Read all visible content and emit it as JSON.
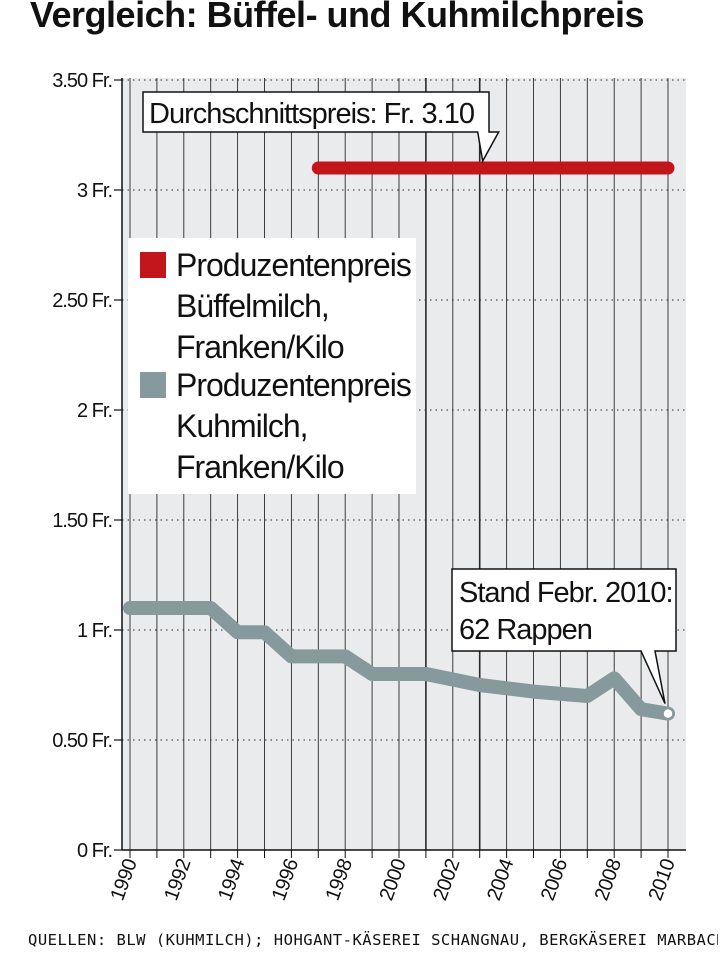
{
  "title": "Vergleich: Büffel- und Kuhmilchpreis",
  "source": "QUELLEN: BLW (KUHMILCH); HOHGANT-KÄSEREI SCHANGNAU, BERGKÄSEREI MARBACH SCHANGNAU (BÜFFELMILCH); INFOGRAFIK: BEOBACHTER/DB",
  "colors": {
    "buffalo": "#c3161c",
    "cow": "#86999d",
    "panel": "#e9ebec",
    "grid": "#2a2a2a"
  },
  "chart_data": {
    "type": "line",
    "title": "Vergleich: Büffel- und Kuhmilchpreis",
    "xlabel": "",
    "ylabel": "",
    "xlim": [
      1990,
      2010
    ],
    "ylim": [
      0,
      3.5
    ],
    "x_ticks": [
      "1990",
      "1992",
      "1994",
      "1996",
      "1998",
      "2000",
      "2002",
      "2004",
      "2006",
      "2008",
      "2010"
    ],
    "y_ticks": [
      {
        "value": 0,
        "label": "0 Fr."
      },
      {
        "value": 0.5,
        "label": "0.50 Fr."
      },
      {
        "value": 1,
        "label": "1 Fr."
      },
      {
        "value": 1.5,
        "label": "1.50 Fr."
      },
      {
        "value": 2,
        "label": "2 Fr."
      },
      {
        "value": 2.5,
        "label": "2.50 Fr."
      },
      {
        "value": 3,
        "label": "3 Fr."
      },
      {
        "value": 3.5,
        "label": "3.50 Fr."
      }
    ],
    "grid": true,
    "series": [
      {
        "name": "Produzentenpreis Büffelmilch, Franken/Kilo",
        "legend_lines": [
          "Produzentenpreis",
          "Büffelmilch,",
          "Franken/Kilo"
        ],
        "color": "#c3161c",
        "x": [
          1997,
          2010
        ],
        "y": [
          3.1,
          3.1
        ]
      },
      {
        "name": "Produzentenpreis Kuhmilch, Franken/Kilo",
        "legend_lines": [
          "Produzentenpreis",
          "Kuhmilch,",
          "Franken/Kilo"
        ],
        "color": "#86999d",
        "x": [
          1990,
          1993,
          1994,
          1995,
          1996,
          1998,
          1999,
          2001,
          2003,
          2005,
          2007,
          2008,
          2009,
          2010
        ],
        "y": [
          1.1,
          1.1,
          0.99,
          0.99,
          0.88,
          0.88,
          0.8,
          0.8,
          0.75,
          0.72,
          0.7,
          0.78,
          0.64,
          0.62
        ]
      }
    ],
    "annotations": [
      {
        "lines": [
          "Durchschnittspreis: Fr. 3.10"
        ],
        "x": 2003,
        "y": 3.1
      },
      {
        "lines": [
          "Stand Febr. 2010:",
          "62 Rappen"
        ],
        "x": 2010,
        "y": 0.62
      }
    ],
    "legend": "left"
  }
}
